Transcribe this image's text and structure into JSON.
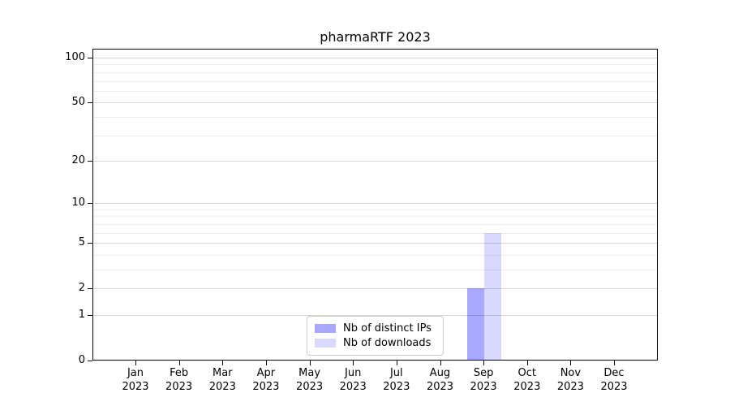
{
  "figure": {
    "background": "#ffffff"
  },
  "chart_data": {
    "type": "bar",
    "title": "pharmaRTF 2023",
    "categories": [
      "Jan 2023",
      "Feb 2023",
      "Mar 2023",
      "Apr 2023",
      "May 2023",
      "Jun 2023",
      "Jul 2023",
      "Aug 2023",
      "Sep 2023",
      "Oct 2023",
      "Nov 2023",
      "Dec 2023"
    ],
    "series": [
      {
        "name": "Nb of distinct IPs",
        "color": "#0000ff",
        "alpha": 0.34,
        "values": [
          0,
          0,
          0,
          0,
          0,
          0,
          0,
          0,
          2,
          0,
          0,
          0
        ]
      },
      {
        "name": "Nb of downloads",
        "color": "#0000ff",
        "alpha": 0.15,
        "values": [
          0,
          0,
          0,
          0,
          0,
          0,
          0,
          0,
          6,
          0,
          0,
          0
        ]
      }
    ],
    "xlabel": "",
    "ylabel": "",
    "y_axis": {
      "scale": "log1p",
      "ticks": [
        0,
        1,
        2,
        5,
        10,
        20,
        50,
        100
      ],
      "minor_ticks": [
        3,
        4,
        6,
        7,
        8,
        9,
        30,
        40,
        60,
        70,
        80,
        90
      ],
      "ylim": [
        0,
        113
      ]
    },
    "legend": {
      "position": "lower center",
      "entries": [
        "Nb of distinct IPs",
        "Nb of downloads"
      ]
    },
    "grid": true,
    "colors": {
      "major_grid": "#d6d6d6",
      "minor_grid": "#ededed",
      "axis": "#000000",
      "text": "#000000"
    }
  }
}
